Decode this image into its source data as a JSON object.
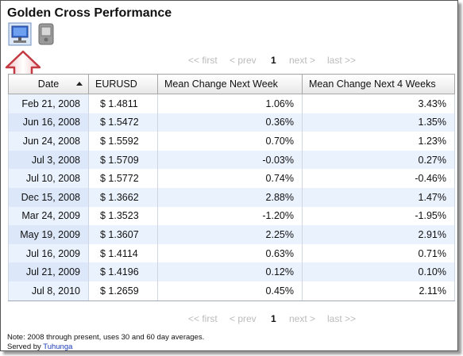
{
  "title": "Golden Cross Performance",
  "pager": {
    "first": "<< first",
    "prev": "< prev",
    "current": "1",
    "next": "next >",
    "last": "last >>"
  },
  "columns": [
    "Date",
    "EURUSD",
    "Mean Change Next Week",
    "Mean Change Next 4 Weeks"
  ],
  "rows": [
    {
      "date": "Feb 21, 2008",
      "price": "$ 1.4811",
      "week": "1.06%",
      "weeks4": "3.43%"
    },
    {
      "date": "Jun 16, 2008",
      "price": "$ 1.5472",
      "week": "0.36%",
      "weeks4": "1.35%"
    },
    {
      "date": "Jun 24, 2008",
      "price": "$ 1.5592",
      "week": "0.70%",
      "weeks4": "1.23%"
    },
    {
      "date": "Jul 3, 2008",
      "price": "$ 1.5709",
      "week": "-0.03%",
      "weeks4": "0.27%"
    },
    {
      "date": "Jul 10, 2008",
      "price": "$ 1.5772",
      "week": "0.74%",
      "weeks4": "-0.46%"
    },
    {
      "date": "Dec 15, 2008",
      "price": "$ 1.3662",
      "week": "2.88%",
      "weeks4": "1.47%"
    },
    {
      "date": "Mar 24, 2009",
      "price": "$ 1.3523",
      "week": "-1.20%",
      "weeks4": "-1.95%"
    },
    {
      "date": "May 19, 2009",
      "price": "$ 1.3607",
      "week": "2.25%",
      "weeks4": "2.91%"
    },
    {
      "date": "Jul 16, 2009",
      "price": "$ 1.4114",
      "week": "0.63%",
      "weeks4": "0.71%"
    },
    {
      "date": "Jul 21, 2009",
      "price": "$ 1.4196",
      "week": "0.12%",
      "weeks4": "0.10%"
    },
    {
      "date": "Jul 8, 2010",
      "price": "$ 1.2659",
      "week": "0.45%",
      "weeks4": "2.11%"
    }
  ],
  "note": "Note: 2008 through present, uses 30 and 60 day averages.",
  "served_prefix": "Served by",
  "served_link": "Tuhunga",
  "icons": {
    "monitor": "monitor-icon",
    "handheld": "handheld-icon",
    "arrow": "up-arrow-icon"
  },
  "colors": {
    "row_alt": "#eaf2fd",
    "link": "#1a3bb8",
    "pager_disabled": "#bbbbbb"
  }
}
